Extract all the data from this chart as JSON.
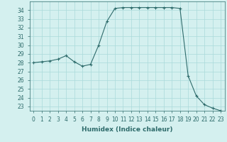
{
  "x": [
    0,
    1,
    2,
    3,
    4,
    5,
    6,
    7,
    8,
    9,
    10,
    11,
    12,
    13,
    14,
    15,
    16,
    17,
    18,
    19,
    20,
    21,
    22,
    23
  ],
  "y": [
    28.0,
    28.1,
    28.2,
    28.4,
    28.8,
    28.1,
    27.6,
    27.8,
    30.0,
    32.7,
    34.2,
    34.3,
    34.3,
    34.3,
    34.3,
    34.3,
    34.3,
    34.3,
    34.2,
    26.5,
    24.2,
    23.2,
    22.8,
    22.5
  ],
  "line_color": "#2e6b6b",
  "marker_color": "#2e6b6b",
  "bg_color": "#d4f0ef",
  "grid_color": "#aadada",
  "xlabel": "Humidex (Indice chaleur)",
  "ylim": [
    22.5,
    35.0
  ],
  "xlim": [
    -0.5,
    23.5
  ],
  "yticks": [
    23,
    24,
    25,
    26,
    27,
    28,
    29,
    30,
    31,
    32,
    33,
    34
  ],
  "xticks": [
    0,
    1,
    2,
    3,
    4,
    5,
    6,
    7,
    8,
    9,
    10,
    11,
    12,
    13,
    14,
    15,
    16,
    17,
    18,
    19,
    20,
    21,
    22,
    23
  ],
  "label_fontsize": 6.5,
  "tick_fontsize": 5.5
}
